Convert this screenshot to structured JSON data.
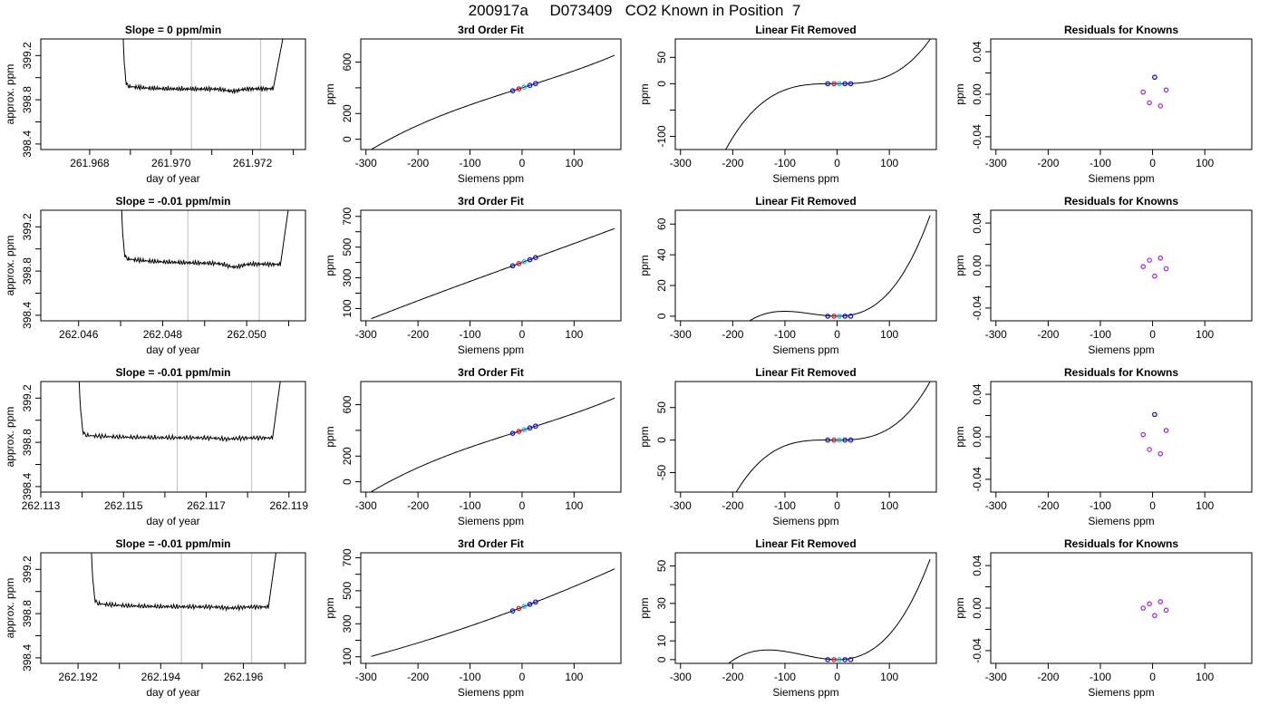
{
  "page_title": "200917a     D073409   CO2 Known in Position  7",
  "colors": {
    "line": "#000000",
    "gridline": "#bebebe",
    "marker_blue": "#0000ff",
    "marker_cyan": "#00bfff",
    "marker_red": "#ff0000",
    "marker_purple": "#a020f0"
  },
  "chart_data": [
    {
      "type": "line",
      "title": "Slope =  0  ppm/min",
      "xlabel": "day of year",
      "ylabel": "approx. ppm",
      "xlim": [
        261.9668,
        261.9733
      ],
      "ylim": [
        398.35,
        399.35
      ],
      "xticks": [
        261.968,
        261.97,
        261.972
      ],
      "xtick_labels": [
        "261.968",
        "261.970",
        "261.972"
      ],
      "xtick_minor": [
        261.969,
        261.971,
        261.973
      ],
      "yticks": [
        398.4,
        398.8,
        399.2
      ],
      "ytick_labels": [
        "398.4",
        "398.8",
        "399.2"
      ],
      "ytick_minor": [
        398.6,
        399.0
      ],
      "vlines": [
        261.9705,
        261.9722
      ],
      "trace": {
        "start": 261.9688,
        "rise_end": 261.9725,
        "end": 261.9729,
        "drop_to": 398.93,
        "level": 398.89,
        "end_level": 398.9,
        "dip": [
          261.9715,
          398.87
        ]
      }
    },
    {
      "type": "line",
      "title": "3rd Order Fit",
      "xlabel": "Siemens ppm",
      "ylabel": "ppm",
      "xlim": [
        -310,
        190
      ],
      "ylim": [
        -80,
        780
      ],
      "xticks": [
        -300,
        -200,
        -100,
        0,
        100
      ],
      "xtick_labels": [
        "-300",
        "-200",
        "-100",
        "0",
        "100"
      ],
      "yticks": [
        0,
        200,
        600
      ],
      "ytick_labels": [
        "0",
        "200",
        "600"
      ],
      "ytick_minor": [
        400
      ],
      "curve": {
        "kind": "cubic_fit",
        "coef": [
          400,
          1.28,
          0.0,
          4.5e-06
        ],
        "xrange": [
          -290,
          178
        ]
      },
      "points": [
        {
          "x": -18,
          "y": 377,
          "color": "#0000ff"
        },
        {
          "x": -6,
          "y": 392,
          "color": "#ff0000"
        },
        {
          "x": 4,
          "y": 405,
          "color": "#00bfff"
        },
        {
          "x": 15,
          "y": 419,
          "color": "#0000ff"
        },
        {
          "x": 26,
          "y": 433,
          "color": "#0000ff"
        }
      ]
    },
    {
      "type": "line",
      "title": "Linear Fit Removed",
      "xlabel": "Siemens ppm",
      "ylabel": "ppm",
      "xlim": [
        -310,
        190
      ],
      "ylim": [
        -125,
        85
      ],
      "xticks": [
        -300,
        -200,
        -100,
        0,
        100
      ],
      "xtick_labels": [
        "-300",
        "-200",
        "-100",
        "0",
        "100"
      ],
      "yticks": [
        -100,
        0,
        50
      ],
      "ytick_labels": [
        "-100",
        "0",
        "50"
      ],
      "ytick_minor": [
        -50
      ],
      "curve": {
        "kind": "poly",
        "coef": [
          0,
          0,
          0.0002,
          1.38e-05
        ],
        "xrange": [
          -288,
          178
        ]
      },
      "points": [
        {
          "x": -18,
          "y": 0,
          "color": "#0000ff"
        },
        {
          "x": -6,
          "y": 0,
          "color": "#ff0000"
        },
        {
          "x": 4,
          "y": 0,
          "color": "#00bfff"
        },
        {
          "x": 15,
          "y": 0,
          "color": "#0000ff"
        },
        {
          "x": 26,
          "y": 0,
          "color": "#0000ff"
        }
      ]
    },
    {
      "type": "scatter",
      "title": "Residuals for Knowns",
      "xlabel": "Siemens ppm",
      "ylabel": "ppm",
      "xlim": [
        -310,
        190
      ],
      "ylim": [
        -0.052,
        0.052
      ],
      "xticks": [
        -300,
        -200,
        -100,
        0,
        100
      ],
      "xtick_labels": [
        "-300",
        "-200",
        "-100",
        "0",
        "100"
      ],
      "yticks": [
        -0.04,
        0.0,
        0.04
      ],
      "ytick_labels": [
        "-0.04",
        "0.00",
        "0.04"
      ],
      "ytick_minor": [
        -0.02,
        0.02
      ],
      "points": [
        {
          "x": -18,
          "y": 0.002,
          "color": "#a020f0"
        },
        {
          "x": -6,
          "y": -0.008,
          "color": "#a020f0"
        },
        {
          "x": 4,
          "y": 0.016,
          "color": "#0000ff"
        },
        {
          "x": 15,
          "y": -0.011,
          "color": "#a020f0"
        },
        {
          "x": 26,
          "y": 0.004,
          "color": "#a020f0"
        }
      ]
    },
    {
      "type": "line",
      "title": "Slope =  -0.01  ppm/min",
      "xlabel": "day of year",
      "ylabel": "approx. ppm",
      "xlim": [
        262.0451,
        262.0514
      ],
      "ylim": [
        398.35,
        399.35
      ],
      "xticks": [
        262.046,
        262.048,
        262.05
      ],
      "xtick_labels": [
        "262.046",
        "262.048",
        "262.050"
      ],
      "xtick_minor": [
        262.047,
        262.049,
        262.051
      ],
      "yticks": [
        398.4,
        398.8,
        399.2
      ],
      "ytick_labels": [
        "398.4",
        "398.8",
        "399.2"
      ],
      "ytick_minor": [
        398.6,
        399.0
      ],
      "vlines": [
        262.0486,
        262.0503
      ],
      "trace": {
        "start": 262.047,
        "rise_end": 262.0508,
        "end": 262.0511,
        "drop_to": 398.92,
        "level": 398.88,
        "end_level": 398.86,
        "dip": [
          262.0497,
          398.85
        ]
      }
    },
    {
      "type": "line",
      "title": "3rd Order Fit",
      "xlabel": "Siemens ppm",
      "ylabel": "ppm",
      "xlim": [
        -310,
        190
      ],
      "ylim": [
        20,
        740
      ],
      "xticks": [
        -300,
        -200,
        -100,
        0,
        100
      ],
      "xtick_labels": [
        "-300",
        "-200",
        "-100",
        "0",
        "100"
      ],
      "yticks": [
        100,
        300,
        500,
        700
      ],
      "ytick_labels": [
        "100",
        "300",
        "500",
        "700"
      ],
      "ytick_minor": [
        200,
        400,
        600
      ],
      "curve": {
        "kind": "cubic_fit",
        "coef": [
          400,
          1.23,
          0.0,
          4e-07
        ],
        "xrange": [
          -290,
          178
        ]
      },
      "points": [
        {
          "x": -18,
          "y": 378,
          "color": "#0000ff"
        },
        {
          "x": -6,
          "y": 393,
          "color": "#ff0000"
        },
        {
          "x": 4,
          "y": 405,
          "color": "#00bfff"
        },
        {
          "x": 15,
          "y": 418,
          "color": "#0000ff"
        },
        {
          "x": 26,
          "y": 432,
          "color": "#0000ff"
        }
      ]
    },
    {
      "type": "line",
      "title": "Linear Fit Removed",
      "xlabel": "Siemens ppm",
      "ylabel": "ppm",
      "xlim": [
        -310,
        190
      ],
      "ylim": [
        -3,
        69
      ],
      "xticks": [
        -300,
        -200,
        -100,
        0,
        100
      ],
      "xtick_labels": [
        "-300",
        "-200",
        "-100",
        "0",
        "100"
      ],
      "yticks": [
        0,
        20,
        40,
        60
      ],
      "ytick_labels": [
        "0",
        "20",
        "40",
        "60"
      ],
      "curve": {
        "kind": "poly",
        "coef": [
          0,
          0,
          0.00095,
          6.3e-06
        ],
        "xrange": [
          -288,
          178
        ]
      },
      "points": [
        {
          "x": -18,
          "y": 0,
          "color": "#0000ff"
        },
        {
          "x": -6,
          "y": 0,
          "color": "#ff0000"
        },
        {
          "x": 4,
          "y": 0,
          "color": "#00bfff"
        },
        {
          "x": 15,
          "y": 0,
          "color": "#0000ff"
        },
        {
          "x": 26,
          "y": 0,
          "color": "#0000ff"
        }
      ]
    },
    {
      "type": "scatter",
      "title": "Residuals for Knowns",
      "xlabel": "Siemens ppm",
      "ylabel": "ppm",
      "xlim": [
        -310,
        190
      ],
      "ylim": [
        -0.052,
        0.052
      ],
      "xticks": [
        -300,
        -200,
        -100,
        0,
        100
      ],
      "xtick_labels": [
        "-300",
        "-200",
        "-100",
        "0",
        "100"
      ],
      "yticks": [
        -0.04,
        0.0,
        0.04
      ],
      "ytick_labels": [
        "-0.04",
        "0.00",
        "0.04"
      ],
      "ytick_minor": [
        -0.02,
        0.02
      ],
      "points": [
        {
          "x": -18,
          "y": -0.001,
          "color": "#a020f0"
        },
        {
          "x": -6,
          "y": 0.005,
          "color": "#a020f0"
        },
        {
          "x": 4,
          "y": -0.01,
          "color": "#a020f0"
        },
        {
          "x": 15,
          "y": 0.007,
          "color": "#a020f0"
        },
        {
          "x": 26,
          "y": -0.003,
          "color": "#a020f0"
        }
      ]
    },
    {
      "type": "line",
      "title": "Slope =  -0.01  ppm/min",
      "xlabel": "day of year",
      "ylabel": "approx. ppm",
      "xlim": [
        262.113,
        262.1194
      ],
      "ylim": [
        398.35,
        399.35
      ],
      "xticks": [
        262.113,
        262.115,
        262.117,
        262.119
      ],
      "xtick_labels": [
        "262.113",
        "262.115",
        "262.117",
        "262.119"
      ],
      "xtick_minor": [
        262.114,
        262.116,
        262.118
      ],
      "yticks": [
        398.4,
        398.8,
        399.2
      ],
      "ytick_labels": [
        "398.4",
        "398.8",
        "399.2"
      ],
      "ytick_minor": [
        398.6,
        399.0
      ],
      "vlines": [
        262.1163,
        262.1181
      ],
      "trace": {
        "start": 262.1139,
        "rise_end": 262.1186,
        "end": 262.1189,
        "drop_to": 398.87,
        "level": 398.84,
        "end_level": 398.84,
        "dip": [
          262.1175,
          398.83
        ]
      }
    },
    {
      "type": "line",
      "title": "3rd Order Fit",
      "xlabel": "Siemens ppm",
      "ylabel": "ppm",
      "xlim": [
        -310,
        190
      ],
      "ylim": [
        -80,
        780
      ],
      "xticks": [
        -300,
        -200,
        -100,
        0,
        100
      ],
      "xtick_labels": [
        "-300",
        "-200",
        "-100",
        "0",
        "100"
      ],
      "yticks": [
        0,
        200,
        600
      ],
      "ytick_labels": [
        "0",
        "200",
        "600"
      ],
      "ytick_minor": [
        400
      ],
      "curve": {
        "kind": "cubic_fit",
        "coef": [
          400,
          1.27,
          0.0,
          4.5e-06
        ],
        "xrange": [
          -290,
          178
        ]
      },
      "points": [
        {
          "x": -18,
          "y": 377,
          "color": "#0000ff"
        },
        {
          "x": -6,
          "y": 392,
          "color": "#ff0000"
        },
        {
          "x": 4,
          "y": 405,
          "color": "#00bfff"
        },
        {
          "x": 15,
          "y": 419,
          "color": "#0000ff"
        },
        {
          "x": 26,
          "y": 433,
          "color": "#0000ff"
        }
      ]
    },
    {
      "type": "line",
      "title": "Linear Fit Removed",
      "xlabel": "Siemens ppm",
      "ylabel": "ppm",
      "xlim": [
        -310,
        190
      ],
      "ylim": [
        -80,
        90
      ],
      "xticks": [
        -300,
        -200,
        -100,
        0,
        100
      ],
      "xtick_labels": [
        "-300",
        "-200",
        "-100",
        "0",
        "100"
      ],
      "yticks": [
        -50,
        0,
        50
      ],
      "ytick_labels": [
        "-50",
        "0",
        "50"
      ],
      "curve": {
        "kind": "poly",
        "coef": [
          0,
          0,
          0.00045,
          1.34e-05
        ],
        "xrange": [
          -288,
          178
        ]
      },
      "points": [
        {
          "x": -18,
          "y": 0,
          "color": "#0000ff"
        },
        {
          "x": -6,
          "y": 0,
          "color": "#ff0000"
        },
        {
          "x": 4,
          "y": 0,
          "color": "#00bfff"
        },
        {
          "x": 15,
          "y": 0,
          "color": "#0000ff"
        },
        {
          "x": 26,
          "y": 0,
          "color": "#0000ff"
        }
      ]
    },
    {
      "type": "scatter",
      "title": "Residuals for Knowns",
      "xlabel": "Siemens ppm",
      "ylabel": "ppm",
      "xlim": [
        -310,
        190
      ],
      "ylim": [
        -0.052,
        0.052
      ],
      "xticks": [
        -300,
        -200,
        -100,
        0,
        100
      ],
      "xtick_labels": [
        "-300",
        "-200",
        "-100",
        "0",
        "100"
      ],
      "yticks": [
        -0.04,
        0.0,
        0.04
      ],
      "ytick_labels": [
        "-0.04",
        "0.00",
        "0.04"
      ],
      "ytick_minor": [
        -0.02,
        0.02
      ],
      "points": [
        {
          "x": -18,
          "y": 0.002,
          "color": "#a020f0"
        },
        {
          "x": -6,
          "y": -0.012,
          "color": "#a020f0"
        },
        {
          "x": 4,
          "y": 0.021,
          "color": "#0000ff"
        },
        {
          "x": 15,
          "y": -0.016,
          "color": "#a020f0"
        },
        {
          "x": 26,
          "y": 0.006,
          "color": "#a020f0"
        }
      ]
    },
    {
      "type": "line",
      "title": "Slope =  -0.01  ppm/min",
      "xlabel": "day of year",
      "ylabel": "approx. ppm",
      "xlim": [
        262.1911,
        262.1975
      ],
      "ylim": [
        398.35,
        399.35
      ],
      "xticks": [
        262.192,
        262.194,
        262.196
      ],
      "xtick_labels": [
        "262.192",
        "262.194",
        "262.196"
      ],
      "xtick_minor": [
        262.193,
        262.195,
        262.197
      ],
      "yticks": [
        398.4,
        398.8,
        399.2
      ],
      "ytick_labels": [
        "398.4",
        "398.8",
        "399.2"
      ],
      "ytick_minor": [
        398.6,
        399.0
      ],
      "vlines": [
        262.1945,
        262.1962
      ],
      "trace": {
        "start": 262.1923,
        "rise_end": 262.1966,
        "end": 262.1969,
        "drop_to": 398.9,
        "level": 398.86,
        "end_level": 398.86,
        "dip": [
          262.1957,
          398.85
        ]
      }
    },
    {
      "type": "line",
      "title": "3rd Order Fit",
      "xlabel": "Siemens ppm",
      "ylabel": "ppm",
      "xlim": [
        -310,
        190
      ],
      "ylim": [
        60,
        730
      ],
      "xticks": [
        -300,
        -200,
        -100,
        0,
        100
      ],
      "xtick_labels": [
        "-300",
        "-200",
        "-100",
        "0",
        "100"
      ],
      "yticks": [
        100,
        300,
        500,
        700
      ],
      "ytick_labels": [
        "100",
        "300",
        "500",
        "700"
      ],
      "ytick_minor": [
        200,
        400,
        600
      ],
      "curve": {
        "kind": "cubic_fit",
        "coef": [
          400,
          1.2,
          0.0006,
          0.0
        ],
        "xrange": [
          -290,
          178
        ]
      },
      "points": [
        {
          "x": -18,
          "y": 378,
          "color": "#0000ff"
        },
        {
          "x": -6,
          "y": 393,
          "color": "#ff0000"
        },
        {
          "x": 4,
          "y": 405,
          "color": "#00bfff"
        },
        {
          "x": 15,
          "y": 418,
          "color": "#0000ff"
        },
        {
          "x": 26,
          "y": 432,
          "color": "#0000ff"
        }
      ]
    },
    {
      "type": "line",
      "title": "Linear Fit Removed",
      "xlabel": "Siemens ppm",
      "ylabel": "ppm",
      "xlim": [
        -310,
        190
      ],
      "ylim": [
        -2,
        57
      ],
      "xticks": [
        -300,
        -200,
        -100,
        0,
        100
      ],
      "xtick_labels": [
        "-300",
        "-200",
        "-100",
        "0",
        "100"
      ],
      "yticks": [
        0,
        10,
        30,
        50
      ],
      "ytick_labels": [
        "0",
        "10",
        "30",
        "50"
      ],
      "ytick_minor": [
        20,
        40
      ],
      "curve": {
        "kind": "poly",
        "coef": [
          0,
          0,
          0.00089,
          4.5e-06
        ],
        "xrange": [
          -288,
          178
        ]
      },
      "points": [
        {
          "x": -18,
          "y": 0,
          "color": "#0000ff"
        },
        {
          "x": -6,
          "y": 0,
          "color": "#ff0000"
        },
        {
          "x": 4,
          "y": 0,
          "color": "#00bfff"
        },
        {
          "x": 15,
          "y": 0,
          "color": "#0000ff"
        },
        {
          "x": 26,
          "y": 0,
          "color": "#0000ff"
        }
      ]
    },
    {
      "type": "scatter",
      "title": "Residuals for Knowns",
      "xlabel": "Siemens ppm",
      "ylabel": "ppm",
      "xlim": [
        -310,
        190
      ],
      "ylim": [
        -0.052,
        0.052
      ],
      "xticks": [
        -300,
        -200,
        -100,
        0,
        100
      ],
      "xtick_labels": [
        "-300",
        "-200",
        "-100",
        "0",
        "100"
      ],
      "yticks": [
        -0.04,
        0.0,
        0.04
      ],
      "ytick_labels": [
        "-0.04",
        "0.00",
        "0.04"
      ],
      "ytick_minor": [
        -0.02,
        0.02
      ],
      "points": [
        {
          "x": -18,
          "y": 0.0,
          "color": "#a020f0"
        },
        {
          "x": -6,
          "y": 0.004,
          "color": "#a020f0"
        },
        {
          "x": 4,
          "y": -0.007,
          "color": "#a020f0"
        },
        {
          "x": 15,
          "y": 0.006,
          "color": "#a020f0"
        },
        {
          "x": 26,
          "y": -0.002,
          "color": "#a020f0"
        }
      ]
    }
  ]
}
